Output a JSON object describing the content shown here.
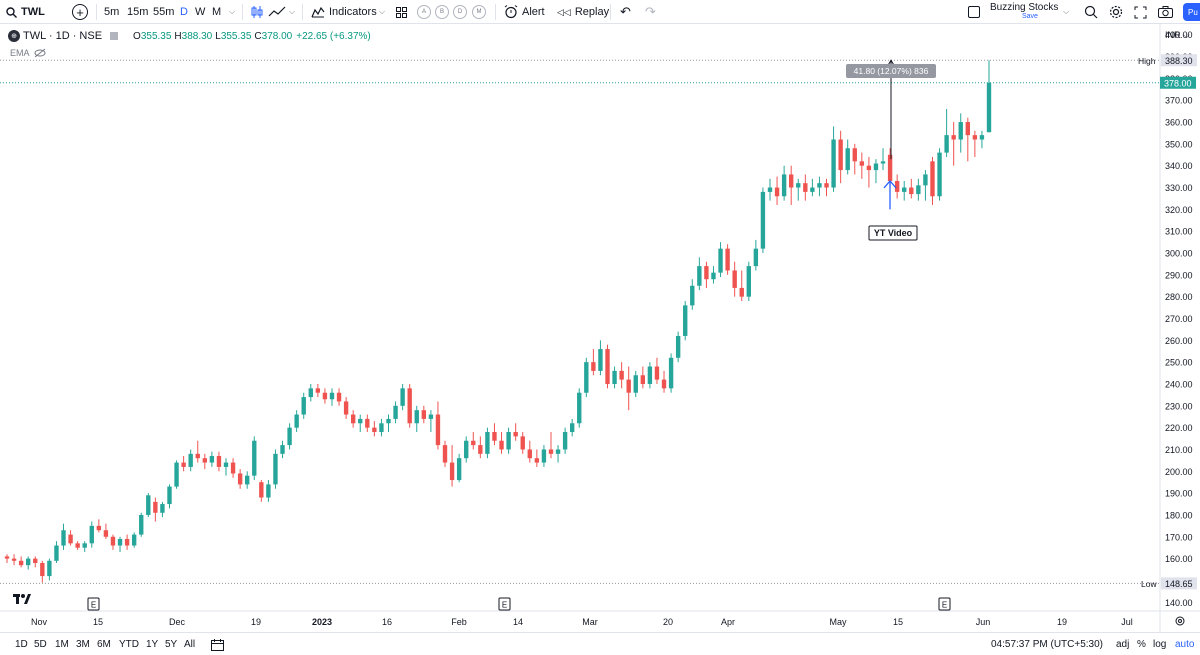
{
  "toolbar": {
    "symbol": "TWL",
    "intervals": [
      "5m",
      "15m",
      "55m",
      "D",
      "W",
      "M"
    ],
    "active_interval": "D",
    "indicators_label": "Indicators",
    "layout_buttons": [
      "A",
      "B",
      "D",
      "M"
    ],
    "alert_label": "Alert",
    "replay_label": "Replay",
    "layout_name": "Buzzing Stocks",
    "save_label": "Save",
    "publish_label": "Pu"
  },
  "legend": {
    "title": "TWL · 1D · NSE",
    "o_label": "O",
    "o_value": "355.35",
    "h_label": "H",
    "h_value": "388.30",
    "l_label": "L",
    "l_value": "355.35",
    "c_label": "C",
    "c_value": "378.00",
    "change": "+22.65 (+6.37%)",
    "indicator": "EMA"
  },
  "chart_data": {
    "type": "candlestick",
    "symbol": "TWL",
    "exchange": "NSE",
    "currency": "INR",
    "interval": "1D",
    "ylim": [
      136,
      404
    ],
    "y_ticks": [
      140,
      150,
      160,
      170,
      180,
      190,
      200,
      210,
      220,
      230,
      240,
      250,
      260,
      270,
      280,
      290,
      300,
      310,
      320,
      330,
      340,
      350,
      360,
      370,
      380,
      390,
      400
    ],
    "y_tick_labels": [
      "140.00",
      "150.00",
      "160.00",
      "170.00",
      "180.00",
      "190.00",
      "200.00",
      "210.00",
      "220.00",
      "230.00",
      "240.00",
      "250.00",
      "260.00",
      "270.00",
      "280.00",
      "290.00",
      "300.00",
      "310.00",
      "320.00",
      "330.00",
      "340.00",
      "350.00",
      "360.00",
      "370.00",
      "380.00",
      "390.00",
      "400.00"
    ],
    "x_labels": [
      "Nov",
      "15",
      "Dec",
      "19",
      "2023",
      "16",
      "Feb",
      "14",
      "Mar",
      "20",
      "Apr",
      "May",
      "15",
      "Jun",
      "19",
      "Jul"
    ],
    "earnings_markers": [
      "E",
      "E",
      "E"
    ],
    "high_label": "High",
    "high_value": "388.30",
    "low_label": "Low",
    "low_value": "148.65",
    "last_price": "378.00",
    "measure_label": "41.80 (12.07%) 836",
    "annotation": "YT Video",
    "colors": {
      "up": "#26a69a",
      "down": "#ef5350"
    },
    "candles": [
      [
        161,
        162,
        158,
        160
      ],
      [
        160,
        162,
        157,
        159
      ],
      [
        159,
        161,
        156,
        157
      ],
      [
        157,
        161,
        155,
        160
      ],
      [
        160,
        161,
        156,
        158
      ],
      [
        158,
        159,
        149,
        152
      ],
      [
        152,
        160,
        150,
        159
      ],
      [
        159,
        168,
        158,
        166
      ],
      [
        166,
        176,
        164,
        173
      ],
      [
        171,
        173,
        166,
        167
      ],
      [
        167,
        168,
        164,
        165
      ],
      [
        165,
        168,
        163,
        167
      ],
      [
        167,
        177,
        165,
        175
      ],
      [
        175,
        178,
        172,
        173
      ],
      [
        173,
        176,
        169,
        170
      ],
      [
        170,
        171,
        164,
        166
      ],
      [
        166,
        170,
        163,
        169
      ],
      [
        169,
        171,
        164,
        166
      ],
      [
        166,
        172,
        165,
        171
      ],
      [
        171,
        181,
        170,
        180
      ],
      [
        180,
        190,
        179,
        189
      ],
      [
        186,
        188,
        177,
        181
      ],
      [
        181,
        186,
        179,
        185
      ],
      [
        185,
        194,
        183,
        193
      ],
      [
        193,
        205,
        192,
        204
      ],
      [
        204,
        207,
        200,
        202
      ],
      [
        202,
        210,
        200,
        208
      ],
      [
        208,
        214,
        204,
        206
      ],
      [
        206,
        208,
        201,
        204
      ],
      [
        204,
        209,
        202,
        207
      ],
      [
        207,
        209,
        200,
        202
      ],
      [
        202,
        206,
        198,
        204
      ],
      [
        204,
        206,
        197,
        199
      ],
      [
        199,
        201,
        192,
        194
      ],
      [
        194,
        200,
        192,
        198
      ],
      [
        198,
        216,
        196,
        214
      ],
      [
        195,
        196,
        186,
        188
      ],
      [
        188,
        196,
        186,
        194
      ],
      [
        194,
        210,
        192,
        208
      ],
      [
        208,
        214,
        206,
        212
      ],
      [
        212,
        222,
        210,
        220
      ],
      [
        220,
        228,
        218,
        226
      ],
      [
        226,
        236,
        224,
        234
      ],
      [
        234,
        240,
        232,
        238
      ],
      [
        238,
        240,
        234,
        236
      ],
      [
        236,
        238,
        231,
        233
      ],
      [
        233,
        238,
        230,
        236
      ],
      [
        236,
        238,
        230,
        232
      ],
      [
        232,
        234,
        224,
        226
      ],
      [
        226,
        228,
        220,
        222
      ],
      [
        222,
        226,
        218,
        224
      ],
      [
        224,
        226,
        218,
        220
      ],
      [
        220,
        223,
        216,
        218
      ],
      [
        218,
        224,
        216,
        222
      ],
      [
        222,
        226,
        218,
        224
      ],
      [
        224,
        232,
        222,
        230
      ],
      [
        230,
        240,
        228,
        238
      ],
      [
        238,
        240,
        220,
        222
      ],
      [
        222,
        230,
        218,
        228
      ],
      [
        228,
        230,
        222,
        224
      ],
      [
        224,
        228,
        218,
        226
      ],
      [
        226,
        232,
        210,
        212
      ],
      [
        212,
        214,
        202,
        204
      ],
      [
        204,
        212,
        193,
        196
      ],
      [
        196,
        208,
        195,
        206
      ],
      [
        206,
        216,
        204,
        214
      ],
      [
        214,
        218,
        210,
        212
      ],
      [
        212,
        216,
        206,
        208
      ],
      [
        208,
        220,
        206,
        218
      ],
      [
        218,
        222,
        212,
        214
      ],
      [
        214,
        218,
        208,
        210
      ],
      [
        210,
        220,
        208,
        218
      ],
      [
        218,
        222,
        214,
        216
      ],
      [
        216,
        218,
        208,
        210
      ],
      [
        210,
        214,
        204,
        206
      ],
      [
        206,
        210,
        202,
        204
      ],
      [
        204,
        212,
        202,
        210
      ],
      [
        210,
        218,
        206,
        208
      ],
      [
        208,
        212,
        204,
        210
      ],
      [
        210,
        220,
        208,
        218
      ],
      [
        218,
        224,
        216,
        222
      ],
      [
        222,
        238,
        220,
        236
      ],
      [
        236,
        252,
        234,
        250
      ],
      [
        250,
        256,
        244,
        246
      ],
      [
        246,
        260,
        244,
        256
      ],
      [
        256,
        258,
        238,
        240
      ],
      [
        240,
        248,
        238,
        246
      ],
      [
        246,
        250,
        238,
        242
      ],
      [
        242,
        248,
        228,
        236
      ],
      [
        236,
        246,
        234,
        244
      ],
      [
        244,
        248,
        238,
        240
      ],
      [
        240,
        250,
        238,
        248
      ],
      [
        248,
        252,
        240,
        242
      ],
      [
        242,
        246,
        236,
        238
      ],
      [
        238,
        254,
        236,
        252
      ],
      [
        252,
        264,
        250,
        262
      ],
      [
        262,
        278,
        260,
        276
      ],
      [
        276,
        288,
        274,
        285
      ],
      [
        285,
        298,
        283,
        294
      ],
      [
        294,
        296,
        284,
        288
      ],
      [
        288,
        294,
        286,
        291
      ],
      [
        291,
        305,
        289,
        302
      ],
      [
        302,
        304,
        290,
        292
      ],
      [
        292,
        296,
        280,
        284
      ],
      [
        284,
        292,
        278,
        280
      ],
      [
        280,
        296,
        278,
        294
      ],
      [
        294,
        306,
        292,
        302
      ],
      [
        302,
        330,
        300,
        328
      ],
      [
        328,
        334,
        324,
        330
      ],
      [
        330,
        335,
        322,
        326
      ],
      [
        326,
        340,
        324,
        336
      ],
      [
        336,
        340,
        322,
        330
      ],
      [
        330,
        334,
        324,
        332
      ],
      [
        332,
        336,
        324,
        328
      ],
      [
        328,
        334,
        326,
        330
      ],
      [
        330,
        335,
        326,
        332
      ],
      [
        332,
        334,
        326,
        330
      ],
      [
        330,
        358,
        328,
        352
      ],
      [
        352,
        356,
        332,
        338
      ],
      [
        338,
        352,
        336,
        348
      ],
      [
        348,
        350,
        336,
        342
      ],
      [
        342,
        346,
        334,
        340
      ],
      [
        340,
        344,
        330,
        338
      ],
      [
        338,
        343,
        332,
        341
      ],
      [
        341,
        348,
        338,
        342
      ],
      [
        345,
        348,
        330,
        333
      ],
      [
        333,
        336,
        325,
        328
      ],
      [
        328,
        333,
        324,
        330
      ],
      [
        330,
        334,
        325,
        327
      ],
      [
        327,
        334,
        324,
        331
      ],
      [
        331,
        338,
        324,
        336
      ],
      [
        342,
        344,
        322,
        326
      ],
      [
        326,
        348,
        324,
        346
      ],
      [
        346,
        366,
        344,
        354
      ],
      [
        354,
        360,
        340,
        352
      ],
      [
        352,
        364,
        346,
        360
      ],
      [
        360,
        362,
        342,
        354
      ],
      [
        354,
        356,
        344,
        352
      ],
      [
        352,
        356,
        348,
        354
      ],
      [
        355.35,
        388.3,
        355.35,
        378
      ]
    ]
  }
}
